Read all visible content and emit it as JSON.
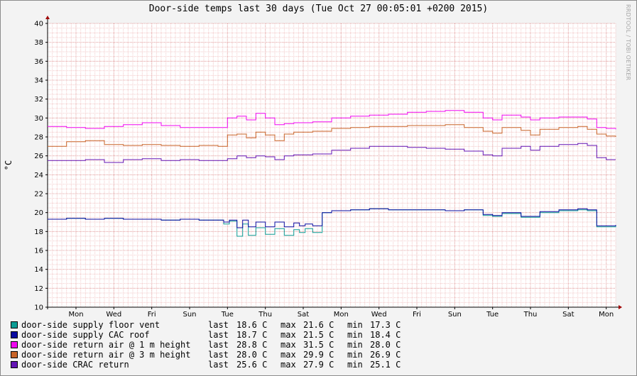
{
  "title": "Door-side temps last 30 days (Tue Oct 27 00:05:01 +0200 2015)",
  "watermark": "RRDTOOL / TOBI OETIKER",
  "ylabel": "°C",
  "chart_data": {
    "type": "line",
    "title": "Door-side temps last 30 days (Tue Oct 27 00:05:01 +0200 2015)",
    "ylabel": "°C",
    "ylim": [
      10,
      40
    ],
    "yticks": [
      10,
      12,
      14,
      16,
      18,
      20,
      22,
      24,
      26,
      28,
      30,
      32,
      34,
      36,
      38,
      40
    ],
    "xlim": [
      0,
      30
    ],
    "xticks": [
      {
        "label": "Mon",
        "x": 1.5
      },
      {
        "label": "Wed",
        "x": 3.5
      },
      {
        "label": "Fri",
        "x": 5.5
      },
      {
        "label": "Sun",
        "x": 7.5
      },
      {
        "label": "Tue",
        "x": 9.5
      },
      {
        "label": "Thu",
        "x": 11.5
      },
      {
        "label": "Sat",
        "x": 13.5
      },
      {
        "label": "Mon",
        "x": 15.5
      },
      {
        "label": "Wed",
        "x": 17.5
      },
      {
        "label": "Fri",
        "x": 19.5
      },
      {
        "label": "Sun",
        "x": 21.5
      },
      {
        "label": "Tue",
        "x": 23.5
      },
      {
        "label": "Thu",
        "x": 25.5
      },
      {
        "label": "Sat",
        "x": 27.5
      },
      {
        "label": "Mon",
        "x": 29.5
      }
    ],
    "grid": true,
    "legend_position": "bottom-left",
    "series": [
      {
        "name": "door-side supply floor vent",
        "color": "#0c9c94",
        "last": "18.6",
        "max": "21.6",
        "min": "17.3",
        "unit": "C",
        "x": [
          0,
          1,
          2,
          3,
          4,
          5,
          6,
          7,
          8,
          9,
          9.3,
          9.6,
          10,
          10.3,
          10.6,
          11,
          11.5,
          12,
          12.5,
          13,
          13.3,
          13.6,
          14,
          14.5,
          15,
          16,
          17,
          18,
          19,
          20,
          21,
          22,
          23,
          23.5,
          24,
          25,
          26,
          27,
          28,
          28.5,
          29,
          29.5,
          30
        ],
        "y": [
          19.3,
          19.4,
          19.3,
          19.4,
          19.3,
          19.3,
          19.2,
          19.3,
          19.2,
          19.2,
          18.8,
          19.1,
          17.5,
          18.8,
          17.6,
          18.4,
          17.7,
          18.3,
          17.6,
          18.2,
          17.9,
          18.3,
          17.9,
          20.0,
          20.2,
          20.3,
          20.4,
          20.3,
          20.3,
          20.3,
          20.2,
          20.3,
          19.7,
          19.6,
          19.9,
          19.5,
          20.0,
          20.2,
          20.3,
          20.2,
          18.5,
          18.5,
          18.6
        ]
      },
      {
        "name": "door-side supply CAC roof",
        "color": "#0a0aa0",
        "last": "18.7",
        "max": "21.5",
        "min": "18.4",
        "unit": "C",
        "x": [
          0,
          1,
          2,
          3,
          4,
          5,
          6,
          7,
          8,
          9,
          9.3,
          9.6,
          10,
          10.3,
          10.6,
          11,
          11.5,
          12,
          12.5,
          13,
          13.3,
          13.6,
          14,
          14.5,
          15,
          16,
          17,
          18,
          19,
          20,
          21,
          22,
          23,
          23.5,
          24,
          25,
          26,
          27,
          28,
          28.5,
          29,
          29.5,
          30
        ],
        "y": [
          19.3,
          19.4,
          19.3,
          19.4,
          19.3,
          19.3,
          19.2,
          19.3,
          19.2,
          19.2,
          19.0,
          19.2,
          18.4,
          19.2,
          18.5,
          19.0,
          18.5,
          19.0,
          18.5,
          18.9,
          18.6,
          18.8,
          18.6,
          20.0,
          20.2,
          20.3,
          20.4,
          20.3,
          20.3,
          20.3,
          20.2,
          20.3,
          19.8,
          19.7,
          20.0,
          19.6,
          20.1,
          20.3,
          20.4,
          20.3,
          18.6,
          18.6,
          18.7
        ]
      },
      {
        "name": "door-side return air @ 1 m height",
        "color": "#f006f0",
        "last": "28.8",
        "max": "31.5",
        "min": "28.0",
        "unit": "C",
        "x": [
          0,
          1,
          2,
          3,
          4,
          5,
          6,
          7,
          8,
          9,
          9.5,
          10,
          10.5,
          11,
          11.5,
          12,
          12.5,
          13,
          14,
          15,
          16,
          17,
          18,
          19,
          20,
          21,
          22,
          23,
          23.5,
          24,
          25,
          25.5,
          26,
          27,
          28,
          28.5,
          29,
          29.5,
          30
        ],
        "y": [
          29.1,
          29.0,
          28.9,
          29.1,
          29.3,
          29.5,
          29.2,
          29.0,
          29.0,
          29.0,
          30.0,
          30.2,
          29.8,
          30.5,
          30.0,
          29.3,
          29.4,
          29.5,
          29.6,
          30.0,
          30.2,
          30.3,
          30.4,
          30.6,
          30.7,
          30.8,
          30.6,
          30.0,
          29.8,
          30.3,
          30.1,
          29.8,
          30.0,
          30.1,
          30.1,
          29.9,
          29.0,
          28.9,
          28.8
        ]
      },
      {
        "name": "door-side return air @ 3 m height",
        "color": "#c86428",
        "last": "28.0",
        "max": "29.9",
        "min": "26.9",
        "unit": "C",
        "x": [
          0,
          1,
          2,
          3,
          4,
          5,
          6,
          7,
          8,
          9,
          9.5,
          10,
          10.5,
          11,
          11.5,
          12,
          12.5,
          13,
          14,
          15,
          16,
          17,
          18,
          19,
          20,
          21,
          22,
          23,
          23.5,
          24,
          25,
          25.5,
          26,
          27,
          28,
          28.5,
          29,
          29.5,
          30
        ],
        "y": [
          27.0,
          27.5,
          27.6,
          27.2,
          27.1,
          27.2,
          27.1,
          27.0,
          27.1,
          27.0,
          28.2,
          28.3,
          27.9,
          28.5,
          28.2,
          27.6,
          28.3,
          28.5,
          28.6,
          28.9,
          29.0,
          29.1,
          29.1,
          29.2,
          29.2,
          29.3,
          29.0,
          28.6,
          28.4,
          29.0,
          28.7,
          28.2,
          28.8,
          29.0,
          29.1,
          28.8,
          28.3,
          28.1,
          28.0
        ]
      },
      {
        "name": "door-side CRAC return",
        "color": "#6414b4",
        "last": "25.6",
        "max": "27.9",
        "min": "25.1",
        "unit": "C",
        "x": [
          0,
          1,
          2,
          3,
          4,
          5,
          6,
          7,
          8,
          9,
          9.5,
          10,
          10.5,
          11,
          11.5,
          12,
          12.5,
          13,
          14,
          15,
          16,
          17,
          18,
          19,
          20,
          21,
          22,
          23,
          23.5,
          24,
          25,
          25.5,
          26,
          27,
          28,
          28.5,
          29,
          29.5,
          30
        ],
        "y": [
          25.5,
          25.5,
          25.6,
          25.3,
          25.6,
          25.7,
          25.5,
          25.6,
          25.5,
          25.5,
          25.7,
          26.0,
          25.8,
          26.0,
          25.9,
          25.6,
          26.0,
          26.1,
          26.2,
          26.6,
          26.8,
          27.0,
          27.0,
          26.9,
          26.8,
          26.7,
          26.5,
          26.1,
          26.0,
          26.8,
          27.0,
          26.6,
          27.0,
          27.2,
          27.3,
          27.1,
          25.8,
          25.6,
          25.6
        ]
      }
    ]
  }
}
